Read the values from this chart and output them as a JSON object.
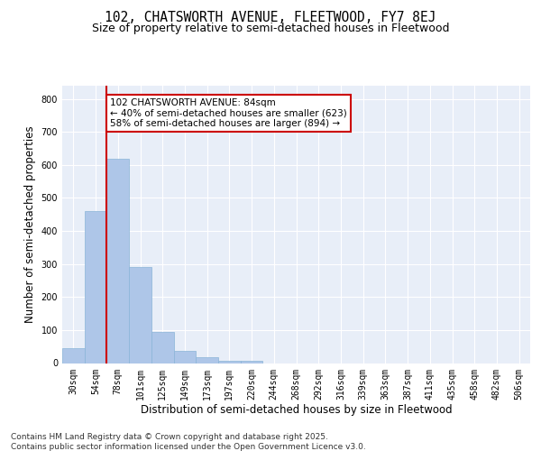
{
  "title": "102, CHATSWORTH AVENUE, FLEETWOOD, FY7 8EJ",
  "subtitle": "Size of property relative to semi-detached houses in Fleetwood",
  "xlabel": "Distribution of semi-detached houses by size in Fleetwood",
  "ylabel": "Number of semi-detached properties",
  "categories": [
    "30sqm",
    "54sqm",
    "78sqm",
    "101sqm",
    "125sqm",
    "149sqm",
    "173sqm",
    "197sqm",
    "220sqm",
    "244sqm",
    "268sqm",
    "292sqm",
    "316sqm",
    "339sqm",
    "363sqm",
    "387sqm",
    "411sqm",
    "435sqm",
    "458sqm",
    "482sqm",
    "506sqm"
  ],
  "values": [
    45,
    460,
    620,
    290,
    93,
    36,
    17,
    8,
    6,
    0,
    0,
    0,
    0,
    0,
    0,
    0,
    0,
    0,
    0,
    0,
    0
  ],
  "bar_color": "#aec6e8",
  "bar_edgecolor": "#8ab4d8",
  "background_color": "#e8eef8",
  "grid_color": "#ffffff",
  "vline_color": "#cc0000",
  "annotation_text": "102 CHATSWORTH AVENUE: 84sqm\n← 40% of semi-detached houses are smaller (623)\n58% of semi-detached houses are larger (894) →",
  "annotation_box_color": "#cc0000",
  "annotation_bg": "#ffffff",
  "ylim": [
    0,
    840
  ],
  "yticks": [
    0,
    100,
    200,
    300,
    400,
    500,
    600,
    700,
    800
  ],
  "footer": "Contains HM Land Registry data © Crown copyright and database right 2025.\nContains public sector information licensed under the Open Government Licence v3.0.",
  "title_fontsize": 10.5,
  "subtitle_fontsize": 9,
  "axis_label_fontsize": 8.5,
  "tick_fontsize": 7,
  "footer_fontsize": 6.5,
  "annotation_fontsize": 7.5
}
